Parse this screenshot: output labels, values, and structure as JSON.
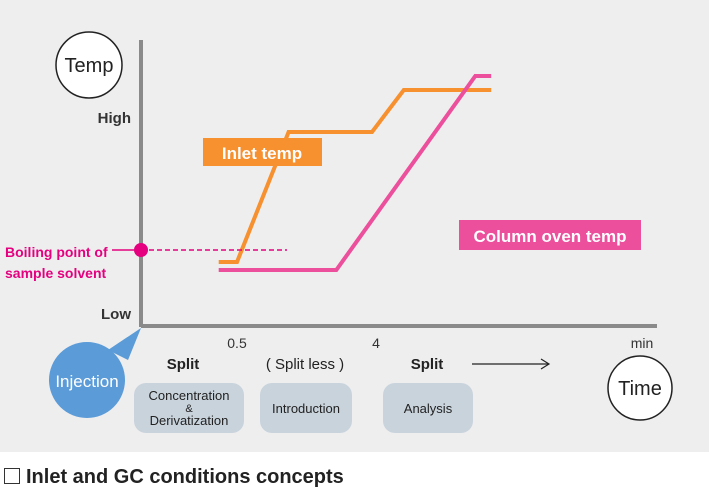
{
  "chart_data": {
    "type": "line",
    "title": "",
    "xlabel": "Time",
    "ylabel": "Temp",
    "x_unit": "min",
    "x_ticks": [
      "0.5",
      "4"
    ],
    "y_ticks": [
      "High",
      "Low"
    ],
    "series": [
      {
        "name": "Inlet temp",
        "color": "#f7902f",
        "points": [
          [
            0.04,
            0.14
          ],
          [
            0.5,
            0.14
          ],
          [
            1.8,
            0.79
          ],
          [
            3.9,
            0.79
          ],
          [
            4.7,
            1.0
          ],
          [
            6.9,
            1.0
          ]
        ]
      },
      {
        "name": "Column oven temp",
        "color": "#ec4f9c",
        "points": [
          [
            0.04,
            0.1
          ],
          [
            3.0,
            0.1
          ],
          [
            6.5,
            1.07
          ],
          [
            6.9,
            1.07
          ]
        ]
      }
    ],
    "annotations": {
      "boiling_point": {
        "label_line1": "Boiling point of",
        "label_line2": "sample solvent",
        "y": 0.2,
        "color": "#e4007f"
      }
    },
    "phases": [
      {
        "mode": "Split",
        "step": "Concentration",
        "step_amp": "&",
        "step2": "Derivatization"
      },
      {
        "mode": "( Split less )",
        "step": "Introduction"
      },
      {
        "mode": "Split",
        "step": "Analysis"
      }
    ],
    "injection_label": "Injection",
    "caption": "Inlet and GC conditions concepts"
  }
}
